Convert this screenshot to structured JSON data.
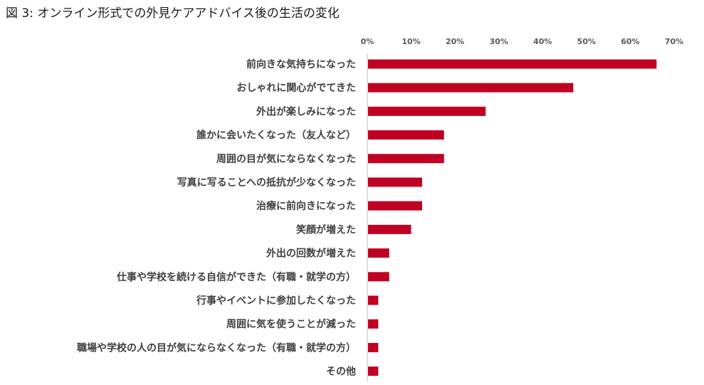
{
  "chart_data": {
    "type": "bar",
    "orientation": "horizontal",
    "title": "図 3:  オンライン形式での外見ケアアドバイス後の生活の変化",
    "categories": [
      "前向きな気持ちになった",
      "おしゃれに関心がでてきた",
      "外出が楽しみになった",
      "誰かに会いたくなった（友人など）",
      "周囲の目が気にならなくなった",
      "写真に写ることへの抵抗が少なくなった",
      "治療に前向きになった",
      "笑顔が増えた",
      "外出の回数が増えた",
      "仕事や学校を続ける自信ができた（有職・就学の方）",
      "行事やイベントに参加したくなった",
      "周囲に気を使うことが減った",
      "職場や学校の人の目が気にならなくなった（有職・就学の方）",
      "その他"
    ],
    "values": [
      66,
      47,
      27,
      17.5,
      17.5,
      12.5,
      12.5,
      10,
      5,
      5,
      2.5,
      2.5,
      2.5,
      2.5
    ],
    "xlim": [
      0,
      70
    ],
    "ticks": [
      0,
      10,
      20,
      30,
      40,
      50,
      60,
      70
    ],
    "tick_labels": [
      "0%",
      "10%",
      "20%",
      "30%",
      "40%",
      "50%",
      "60%",
      "70%"
    ],
    "x_axis_position": "top",
    "grid": false,
    "legend": "none",
    "bar_color": "#c00023",
    "axis_color": "#bfbfbf"
  }
}
